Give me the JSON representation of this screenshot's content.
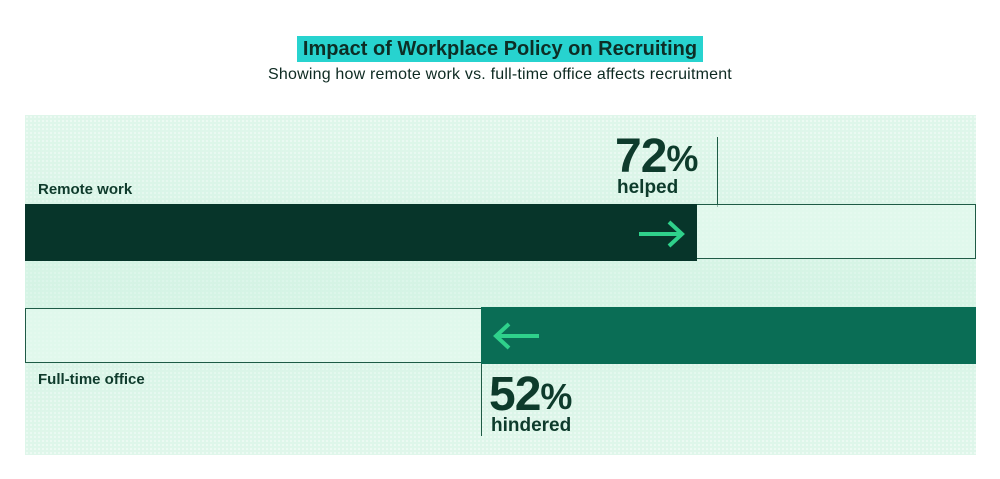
{
  "chart_data": {
    "type": "bar",
    "title": "Impact of Workplace Policy on Recruiting",
    "subtitle": "Showing how remote work vs. full-time office affects recruitment",
    "categories": [
      "Remote work",
      "Full-time office"
    ],
    "values": [
      72,
      52
    ],
    "value_labels": [
      "72",
      "52"
    ],
    "unit": "%",
    "outcomes": [
      "helped",
      "hindered"
    ],
    "directions": [
      "right",
      "left"
    ],
    "ylim": [
      0,
      100
    ],
    "colors": [
      "#07352a",
      "#0a6d55"
    ],
    "arrow_color": "#2fd18b"
  }
}
